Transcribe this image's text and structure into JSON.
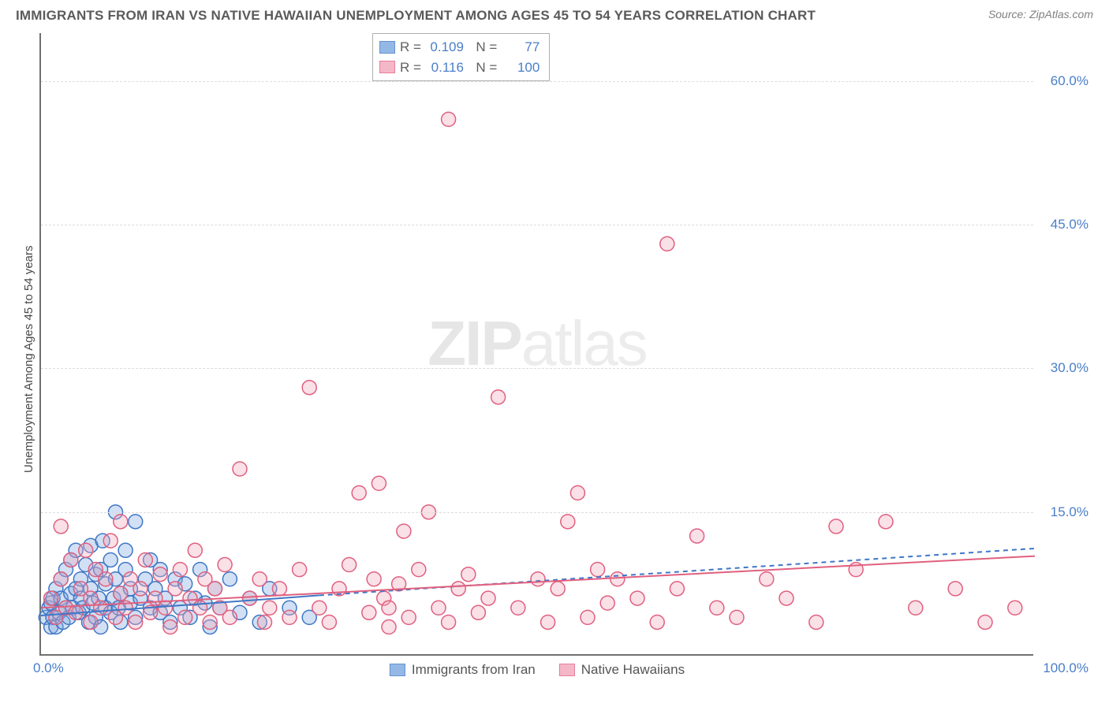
{
  "title": "IMMIGRANTS FROM IRAN VS NATIVE HAWAIIAN UNEMPLOYMENT AMONG AGES 45 TO 54 YEARS CORRELATION CHART",
  "source": "Source: ZipAtlas.com",
  "watermark_a": "ZIP",
  "watermark_b": "atlas",
  "y_axis_label": "Unemployment Among Ages 45 to 54 years",
  "chart": {
    "type": "scatter",
    "xlim": [
      0,
      100
    ],
    "ylim": [
      0,
      65
    ],
    "yticks": [
      15,
      30,
      45,
      60
    ],
    "ytick_labels": [
      "15.0%",
      "30.0%",
      "45.0%",
      "60.0%"
    ],
    "xtick_labels": {
      "min": "0.0%",
      "max": "100.0%"
    },
    "background_color": "#ffffff",
    "grid_color": "#dcdcdc",
    "axis_color": "#707070",
    "marker_radius": 9,
    "marker_stroke_width": 1.5,
    "marker_fill_opacity": 0.35,
    "series": [
      {
        "name": "Immigrants from Iran",
        "fill": "#7aa7e0",
        "stroke": "#3f77c6",
        "R": "0.109",
        "N": "77",
        "trend": {
          "x1": 0,
          "y1": 4.2,
          "x2": 28,
          "y2": 6.3,
          "dash_x2": 100,
          "dash_y2": 11.2,
          "width": 2,
          "dash": "6 5"
        },
        "points": [
          [
            0.5,
            4
          ],
          [
            0.8,
            5
          ],
          [
            1,
            3
          ],
          [
            1,
            5.5
          ],
          [
            1.2,
            4
          ],
          [
            1.2,
            6
          ],
          [
            1.5,
            3
          ],
          [
            1.5,
            7
          ],
          [
            1.8,
            4.5
          ],
          [
            2,
            6
          ],
          [
            2,
            8
          ],
          [
            2.2,
            3.5
          ],
          [
            2.5,
            5
          ],
          [
            2.5,
            9
          ],
          [
            2.8,
            4
          ],
          [
            3,
            6.5
          ],
          [
            3,
            10
          ],
          [
            3.2,
            5
          ],
          [
            3.5,
            7
          ],
          [
            3.5,
            11
          ],
          [
            3.8,
            4.5
          ],
          [
            4,
            8
          ],
          [
            4,
            6
          ],
          [
            4.2,
            5
          ],
          [
            4.5,
            9.5
          ],
          [
            4.8,
            3.5
          ],
          [
            5,
            7
          ],
          [
            5,
            11.5
          ],
          [
            5.2,
            5.5
          ],
          [
            5.5,
            8.5
          ],
          [
            5.5,
            4
          ],
          [
            5.8,
            6
          ],
          [
            6,
            3
          ],
          [
            6,
            9
          ],
          [
            6.2,
            12
          ],
          [
            6.5,
            5
          ],
          [
            6.5,
            7.5
          ],
          [
            7,
            4.5
          ],
          [
            7,
            10
          ],
          [
            7.3,
            6
          ],
          [
            7.5,
            8
          ],
          [
            7.5,
            15
          ],
          [
            7.8,
            5
          ],
          [
            8,
            6.5
          ],
          [
            8,
            3.5
          ],
          [
            8.5,
            9
          ],
          [
            8.5,
            11
          ],
          [
            9,
            5.5
          ],
          [
            9,
            7
          ],
          [
            9.5,
            4
          ],
          [
            9.5,
            14
          ],
          [
            10,
            6
          ],
          [
            10.5,
            8
          ],
          [
            11,
            5
          ],
          [
            11,
            10
          ],
          [
            11.5,
            7
          ],
          [
            12,
            4.5
          ],
          [
            12,
            9
          ],
          [
            12.5,
            6
          ],
          [
            13,
            3.5
          ],
          [
            13.5,
            8
          ],
          [
            14,
            5
          ],
          [
            14.5,
            7.5
          ],
          [
            15,
            4
          ],
          [
            15.5,
            6
          ],
          [
            16,
            9
          ],
          [
            16.5,
            5.5
          ],
          [
            17,
            3
          ],
          [
            17.5,
            7
          ],
          [
            18,
            5
          ],
          [
            19,
            8
          ],
          [
            20,
            4.5
          ],
          [
            21,
            6
          ],
          [
            22,
            3.5
          ],
          [
            23,
            7
          ],
          [
            25,
            5
          ],
          [
            27,
            4
          ]
        ]
      },
      {
        "name": "Native Hawaiians",
        "fill": "#f2a6bb",
        "stroke": "#e0607f",
        "R": "0.116",
        "N": "100",
        "trend": {
          "x1": 0,
          "y1": 5.0,
          "x2": 100,
          "y2": 10.4,
          "width": 2
        },
        "points": [
          [
            1,
            6
          ],
          [
            1.5,
            4
          ],
          [
            2,
            8
          ],
          [
            2,
            13.5
          ],
          [
            2.5,
            5
          ],
          [
            3,
            10
          ],
          [
            3.5,
            4.5
          ],
          [
            4,
            7
          ],
          [
            4.5,
            11
          ],
          [
            5,
            3.5
          ],
          [
            5,
            6
          ],
          [
            5.5,
            9
          ],
          [
            6,
            5
          ],
          [
            6.5,
            8
          ],
          [
            7,
            12
          ],
          [
            7.5,
            4
          ],
          [
            8,
            6.5
          ],
          [
            8,
            14
          ],
          [
            8.5,
            5
          ],
          [
            9,
            8
          ],
          [
            9.5,
            3.5
          ],
          [
            10,
            7
          ],
          [
            10.5,
            10
          ],
          [
            11,
            4.5
          ],
          [
            11.5,
            6
          ],
          [
            12,
            8.5
          ],
          [
            12.5,
            5
          ],
          [
            13,
            3
          ],
          [
            13.5,
            7
          ],
          [
            14,
            9
          ],
          [
            14.5,
            4
          ],
          [
            15,
            6
          ],
          [
            15.5,
            11
          ],
          [
            16,
            5
          ],
          [
            16.5,
            8
          ],
          [
            17,
            3.5
          ],
          [
            17.5,
            7
          ],
          [
            18,
            5
          ],
          [
            18.5,
            9.5
          ],
          [
            19,
            4
          ],
          [
            20,
            19.5
          ],
          [
            21,
            6
          ],
          [
            22,
            8
          ],
          [
            22.5,
            3.5
          ],
          [
            23,
            5
          ],
          [
            24,
            7
          ],
          [
            25,
            4
          ],
          [
            26,
            9
          ],
          [
            27,
            28
          ],
          [
            28,
            5
          ],
          [
            29,
            3.5
          ],
          [
            30,
            7
          ],
          [
            31,
            9.5
          ],
          [
            32,
            17
          ],
          [
            33,
            4.5
          ],
          [
            33.5,
            8
          ],
          [
            34,
            18
          ],
          [
            34.5,
            6
          ],
          [
            35,
            3
          ],
          [
            35,
            5
          ],
          [
            36,
            7.5
          ],
          [
            36.5,
            13
          ],
          [
            37,
            4
          ],
          [
            38,
            9
          ],
          [
            39,
            15
          ],
          [
            40,
            5
          ],
          [
            41,
            3.5
          ],
          [
            41,
            56
          ],
          [
            42,
            7
          ],
          [
            43,
            8.5
          ],
          [
            44,
            4.5
          ],
          [
            45,
            6
          ],
          [
            46,
            27
          ],
          [
            48,
            5
          ],
          [
            50,
            8
          ],
          [
            51,
            3.5
          ],
          [
            52,
            7
          ],
          [
            53,
            14
          ],
          [
            54,
            17
          ],
          [
            55,
            4
          ],
          [
            56,
            9
          ],
          [
            57,
            5.5
          ],
          [
            58,
            8
          ],
          [
            60,
            6
          ],
          [
            62,
            3.5
          ],
          [
            63,
            43
          ],
          [
            64,
            7
          ],
          [
            66,
            12.5
          ],
          [
            68,
            5
          ],
          [
            70,
            4
          ],
          [
            73,
            8
          ],
          [
            75,
            6
          ],
          [
            78,
            3.5
          ],
          [
            80,
            13.5
          ],
          [
            82,
            9
          ],
          [
            85,
            14
          ],
          [
            88,
            5
          ],
          [
            92,
            7
          ],
          [
            95,
            3.5
          ],
          [
            98,
            5
          ]
        ]
      }
    ]
  },
  "legend": {
    "series1_label": "Immigrants from Iran",
    "series2_label": "Native Hawaiians"
  },
  "colors": {
    "text_title": "#5a5a5a",
    "text_source": "#808080",
    "text_axis": "#4a4a4a",
    "tick": "#4a7ec9"
  }
}
